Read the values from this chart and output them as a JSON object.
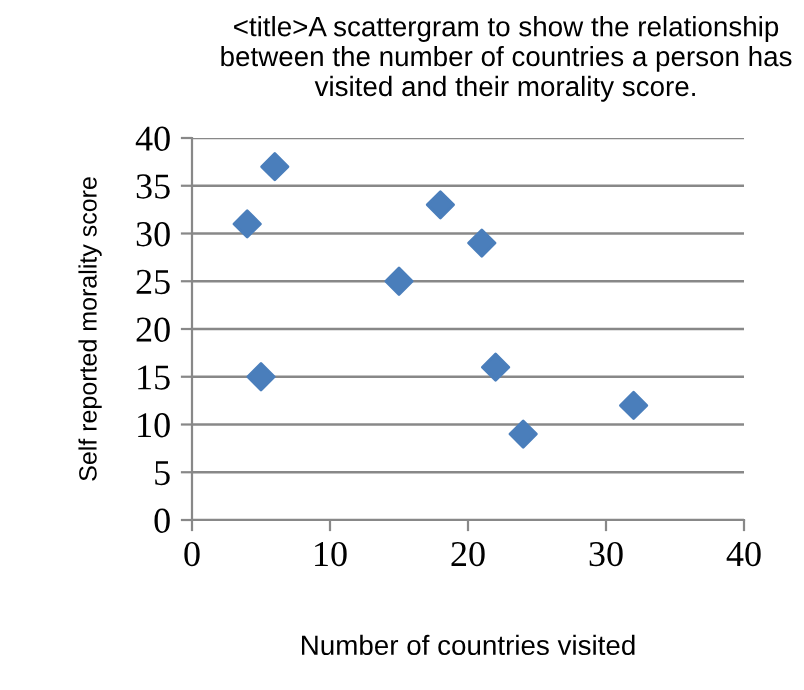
{
  "chart_data": {
    "type": "scatter",
    "title": "<title>A scattergram to show the relationship between the number of countries a person has visited and their morality score.",
    "xlabel": "Number of countries visited",
    "ylabel": "Self reported morality score",
    "x": [
      4,
      6,
      5,
      15,
      18,
      21,
      22,
      24,
      32
    ],
    "series": [
      {
        "color": "#4a7ebb",
        "values": [
          31,
          37,
          15,
          25,
          33,
          29,
          16,
          9,
          12
        ]
      }
    ],
    "marker": "diamond",
    "xlim": [
      0,
      40
    ],
    "xticks": [
      0,
      10,
      20,
      30,
      40
    ],
    "ylim": [
      0,
      40
    ],
    "yticks": [
      0,
      5,
      10,
      15,
      20,
      25,
      30,
      35,
      40
    ],
    "grid": "y",
    "legend": false
  }
}
